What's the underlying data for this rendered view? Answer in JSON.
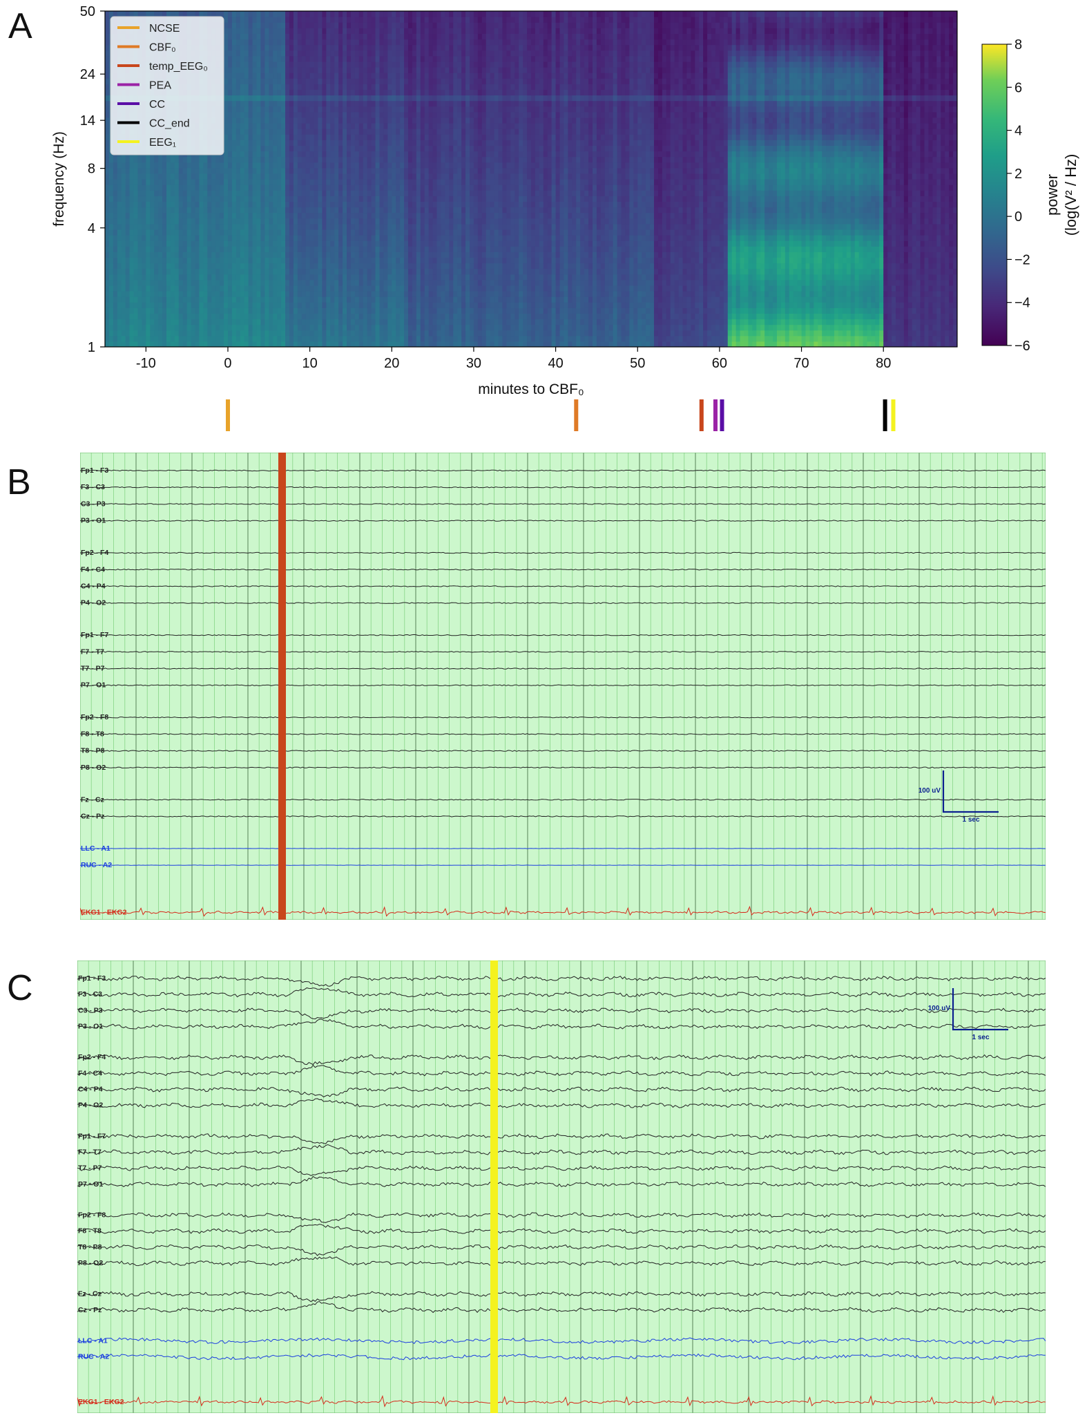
{
  "panels": [
    "A",
    "B",
    "C"
  ],
  "chart_data": [
    {
      "type": "heatmap",
      "panel": "A",
      "xlabel": "minutes to CBF₀",
      "ylabel": "frequency (Hz)",
      "x_ticks": [
        "-10",
        "0",
        "10",
        "20",
        "30",
        "40",
        "50",
        "60",
        "70",
        "80"
      ],
      "x_tick_values": [
        -10,
        0,
        10,
        20,
        30,
        40,
        50,
        60,
        70,
        80
      ],
      "xlim": [
        -15,
        89
      ],
      "y_ticks": [
        "1",
        "4",
        "8",
        "14",
        "24",
        "50"
      ],
      "y_tick_values": [
        1,
        4,
        8,
        14,
        24,
        50
      ],
      "y_scale": "log",
      "colorbar": {
        "label_lines": [
          "power",
          "(log(V² / Hz)"
        ],
        "ticks": [
          "8",
          "6",
          "4",
          "2",
          "0",
          "−2",
          "−4",
          "−6"
        ],
        "tick_values": [
          8,
          6,
          4,
          2,
          0,
          -2,
          -4,
          -6
        ],
        "range": [
          -6,
          8
        ],
        "colormap": "viridis"
      },
      "legend": {
        "position": "upper-left",
        "entries": [
          {
            "label": "NCSE",
            "color": "#e8a32a"
          },
          {
            "label": "CBF₀",
            "color": "#df7a26"
          },
          {
            "label": "temp_EEG₀",
            "color": "#c8461c"
          },
          {
            "label": "PEA",
            "color": "#9b22a6"
          },
          {
            "label": "CC",
            "color": "#5a0ea6"
          },
          {
            "label": "CC_end",
            "color": "#000000"
          },
          {
            "label": "EEG₁",
            "color": "#f4f21f"
          }
        ]
      },
      "event_markers": [
        {
          "label": "NCSE",
          "minute": 0,
          "color": "#e8a32a"
        },
        {
          "label": "CBF₀",
          "minute": 42.5,
          "color": "#df7a26"
        },
        {
          "label": "temp_EEG₀",
          "minute": 57.8,
          "color": "#c8461c"
        },
        {
          "label": "PEA",
          "minute": 59.5,
          "color": "#9b22a6"
        },
        {
          "label": "CC",
          "minute": 60.3,
          "color": "#5a0ea6"
        },
        {
          "label": "CC_end",
          "minute": 80.2,
          "color": "#000000"
        },
        {
          "label": "EEG₁",
          "minute": 81.2,
          "color": "#f4f21f"
        }
      ],
      "power_regions": [
        {
          "from_min": -15,
          "to_min": 7,
          "low_hz_power": 1.2,
          "high_hz_power": -1.5
        },
        {
          "from_min": 7,
          "to_min": 22,
          "low_hz_power": 0.2,
          "high_hz_power": -4.0
        },
        {
          "from_min": 22,
          "to_min": 52,
          "low_hz_power": -1.0,
          "high_hz_power": -4.3
        },
        {
          "from_min": 52,
          "to_min": 61,
          "low_hz_power": -2.5,
          "high_hz_power": -4.8
        },
        {
          "from_min": 61,
          "to_min": 80,
          "low_hz_power": 4.5,
          "high_hz_power": -3.5
        },
        {
          "from_min": 80,
          "to_min": 89,
          "low_hz_power": -3.5,
          "high_hz_power": -5.0
        }
      ],
      "line_noise_band_hz": 18.5
    },
    {
      "type": "line",
      "panel": "B",
      "channels": [
        "Fp1 - F3",
        "F3 - C3",
        "C3 - P3",
        "P3 - O1",
        "Fp2 - F4",
        "F4 - C4",
        "C4 - P4",
        "P4 - O2",
        "Fp1 - F7",
        "F7 - T7",
        "T7 - P7",
        "P7 - O1",
        "Fp2 - F8",
        "F8 - T8",
        "T8 - P8",
        "P8 - O2",
        "Fz - Cz",
        "Cz - Pz",
        "LLC - A1",
        "RUC - A2",
        "EKG1 - EKG2"
      ],
      "scale_bar": {
        "amplitude": "100 uV",
        "time": "1 sec"
      },
      "event_marker": {
        "label": "temp_EEG₀",
        "color": "#c8461c"
      },
      "activity": "suppressed"
    },
    {
      "type": "line",
      "panel": "C",
      "channels": [
        "Fp1 - F3",
        "F3 - C3",
        "C3 - P3",
        "P3 - O1",
        "Fp2 - F4",
        "F4 - C4",
        "C4 - P4",
        "P4 - O2",
        "Fp1 - F7",
        "F7 - T7",
        "T7 - P7",
        "P7 - O1",
        "Fp2 - F8",
        "F8 - T8",
        "T8 - P8",
        "P8 - O2",
        "Fz - Cz",
        "Cz - Pz",
        "LLC - A1",
        "RUC - A2",
        "EKG1 - EKG2"
      ],
      "scale_bar": {
        "amplitude": "100 uV",
        "time": "1 sec"
      },
      "event_marker": {
        "label": "EEG₁",
        "color": "#f4f21f"
      },
      "activity": "active"
    }
  ],
  "colors": {
    "eeg_background": "#ccf7cc",
    "grid_major": "#2f5a2f",
    "grid_minor": "#7fd07f",
    "eeg_trace": "#222222",
    "reference_trace": "#1b3ee0",
    "ekg_trace": "#d62a1a",
    "scale_bar": "#0a1f8f"
  }
}
